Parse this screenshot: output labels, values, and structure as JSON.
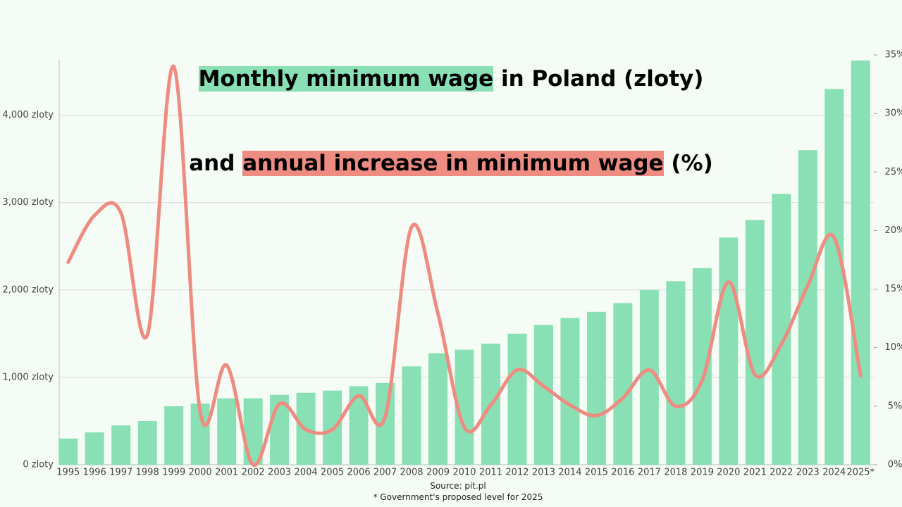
{
  "chart_data": {
    "type": "bar-line",
    "title": {
      "line1": [
        "Monthly minimum wage",
        " in Poland (zloty)"
      ],
      "line2": [
        "and ",
        "annual increase in minimum wage",
        " (%)"
      ]
    },
    "source": "Source: pit.pl",
    "note": "* Government's proposed level for 2025",
    "categories": [
      "1995",
      "1996",
      "1997",
      "1998",
      "1999",
      "2000",
      "2001",
      "2002",
      "2003",
      "2004",
      "2005",
      "2006",
      "2007",
      "2008",
      "2009",
      "2010",
      "2011",
      "2012",
      "2013",
      "2014",
      "2015",
      "2016",
      "2017",
      "2018",
      "2019",
      "2020",
      "2021",
      "2022",
      "2023",
      "2024",
      "2025*"
    ],
    "series": [
      {
        "type": "bar",
        "color": "#88e0b4",
        "values": [
          300,
          370,
          450,
          500,
          670,
          700,
          760,
          760,
          800,
          824,
          849,
          899,
          936,
          1126,
          1276,
          1317,
          1386,
          1500,
          1600,
          1680,
          1750,
          1850,
          2000,
          2100,
          2250,
          2600,
          2800,
          3100,
          3600,
          4300,
          4626
        ]
      },
      {
        "type": "line",
        "axis": "y2",
        "color": "#ee8c82",
        "values": [
          17.3,
          21.3,
          21.5,
          11.1,
          34,
          4.5,
          8.5,
          0,
          5.2,
          3.0,
          3.0,
          5.9,
          4.1,
          20.3,
          12.9,
          3.2,
          5.1,
          8.1,
          6.7,
          5.1,
          4.2,
          5.7,
          8.1,
          5.0,
          7.2,
          15.6,
          7.7,
          10.3,
          15.3,
          19.4,
          7.6
        ]
      }
    ],
    "ylim": [
      0,
      4690
    ],
    "yticks": [
      {
        "value": 0,
        "label": "0 zloty"
      },
      {
        "value": 1000,
        "label": "1,000 zloty"
      },
      {
        "value": 2000,
        "label": "2,000 zloty"
      },
      {
        "value": 3000,
        "label": "3,000 zloty"
      },
      {
        "value": 4000,
        "label": "4,000 zloty"
      }
    ],
    "y2lim": [
      0,
      35
    ],
    "y2ticks": [
      {
        "value": 0,
        "label": "0%"
      },
      {
        "value": 5,
        "label": "5%"
      },
      {
        "value": 10,
        "label": "10%"
      },
      {
        "value": 15,
        "label": "15%"
      },
      {
        "value": 20,
        "label": "20%"
      },
      {
        "value": 25,
        "label": "25%"
      },
      {
        "value": 30,
        "label": "30%"
      },
      {
        "value": 35,
        "label": "35%"
      }
    ],
    "grid": true
  }
}
